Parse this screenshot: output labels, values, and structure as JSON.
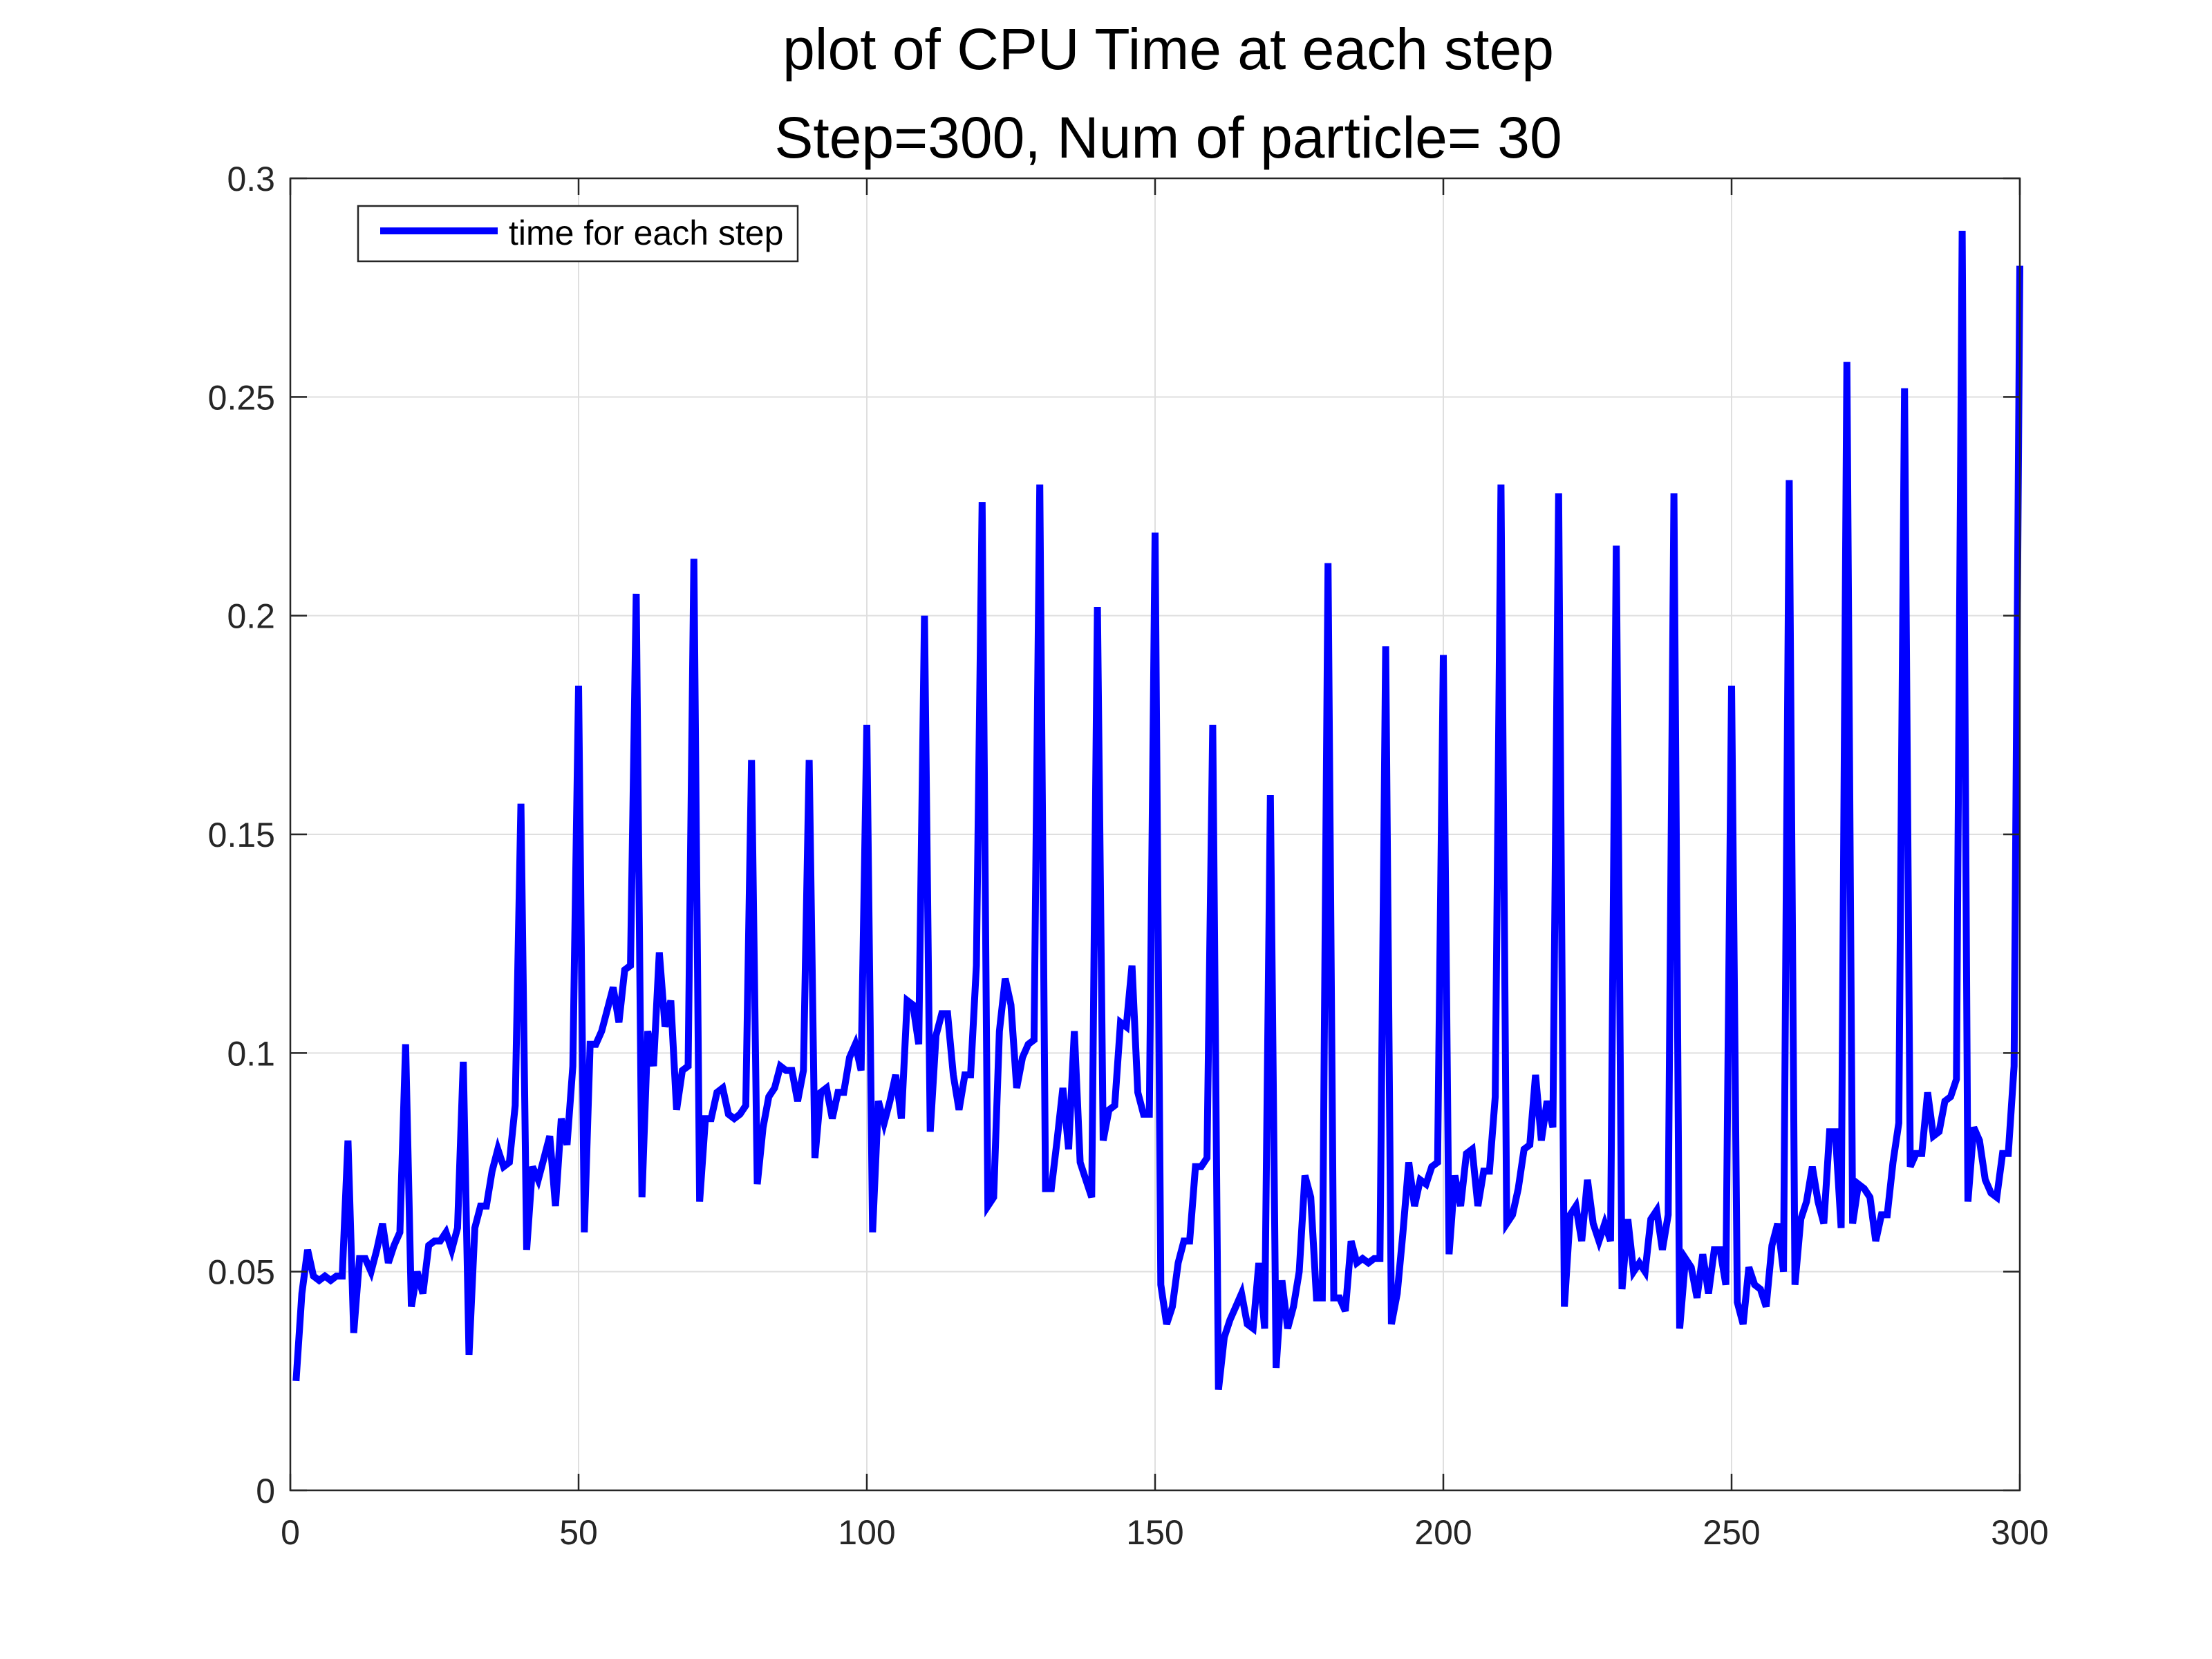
{
  "chart_data": {
    "type": "line",
    "title": "plot of CPU Time at each step",
    "subtitle": "Step=300, Num of particle= 30",
    "xlabel": "",
    "ylabel": "",
    "xlim": [
      0,
      300
    ],
    "ylim": [
      0,
      0.3
    ],
    "xticks": [
      0,
      50,
      100,
      150,
      200,
      250,
      300
    ],
    "xtick_labels": [
      "0",
      "50",
      "100",
      "150",
      "200",
      "250",
      "300"
    ],
    "yticks": [
      0,
      0.05,
      0.1,
      0.15,
      0.2,
      0.25,
      0.3
    ],
    "ytick_labels": [
      "0",
      "0.05",
      "0.1",
      "0.15",
      "0.2",
      "0.25",
      "0.3"
    ],
    "grid": true,
    "legend_position": "top-left",
    "colors": {
      "series": "#0000ff",
      "axis": "#262626",
      "grid": "#dfdfdf"
    },
    "series": [
      {
        "name": "time for each step",
        "color": "#0000ff",
        "x": [
          1,
          2,
          3,
          4,
          5,
          6,
          7,
          8,
          9,
          10,
          11,
          12,
          13,
          14,
          15,
          16,
          17,
          18,
          19,
          20,
          21,
          22,
          23,
          24,
          25,
          26,
          27,
          28,
          29,
          30,
          31,
          32,
          33,
          34,
          35,
          36,
          37,
          38,
          39,
          40,
          41,
          42,
          43,
          44,
          45,
          46,
          47,
          48,
          49,
          50,
          51,
          52,
          53,
          54,
          55,
          56,
          57,
          58,
          59,
          60,
          61,
          62,
          63,
          64,
          65,
          66,
          67,
          68,
          69,
          70,
          71,
          72,
          73,
          74,
          75,
          76,
          77,
          78,
          79,
          80,
          81,
          82,
          83,
          84,
          85,
          86,
          87,
          88,
          89,
          90,
          91,
          92,
          93,
          94,
          95,
          96,
          97,
          98,
          99,
          100,
          101,
          102,
          103,
          104,
          105,
          106,
          107,
          108,
          109,
          110,
          111,
          112,
          113,
          114,
          115,
          116,
          117,
          118,
          119,
          120,
          121,
          122,
          123,
          124,
          125,
          126,
          127,
          128,
          129,
          130,
          131,
          132,
          133,
          134,
          135,
          136,
          137,
          138,
          139,
          140,
          141,
          142,
          143,
          144,
          145,
          146,
          147,
          148,
          149,
          150,
          151,
          152,
          153,
          154,
          155,
          156,
          157,
          158,
          159,
          160,
          161,
          162,
          163,
          164,
          165,
          166,
          167,
          168,
          169,
          170,
          171,
          172,
          173,
          174,
          175,
          176,
          177,
          178,
          179,
          180,
          181,
          182,
          183,
          184,
          185,
          186,
          187,
          188,
          189,
          190,
          191,
          192,
          193,
          194,
          195,
          196,
          197,
          198,
          199,
          200,
          201,
          202,
          203,
          204,
          205,
          206,
          207,
          208,
          209,
          210,
          211,
          212,
          213,
          214,
          215,
          216,
          217,
          218,
          219,
          220,
          221,
          222,
          223,
          224,
          225,
          226,
          227,
          228,
          229,
          230,
          231,
          232,
          233,
          234,
          235,
          236,
          237,
          238,
          239,
          240,
          241,
          242,
          243,
          244,
          245,
          246,
          247,
          248,
          249,
          250,
          251,
          252,
          253,
          254,
          255,
          256,
          257,
          258,
          259,
          260,
          261,
          262,
          263,
          264,
          265,
          266,
          267,
          268,
          269,
          270,
          271,
          272,
          273,
          274,
          275,
          276,
          277,
          278,
          279,
          280,
          281,
          282,
          283,
          284,
          285,
          286,
          287,
          288,
          289,
          290,
          291,
          292,
          293,
          294,
          295,
          296,
          297,
          298,
          299,
          300
        ],
        "values": [
          0.025,
          0.045,
          0.055,
          0.049,
          0.048,
          0.049,
          0.048,
          0.049,
          0.049,
          0.08,
          0.036,
          0.053,
          0.053,
          0.05,
          0.055,
          0.061,
          0.052,
          0.056,
          0.059,
          0.102,
          0.042,
          0.05,
          0.045,
          0.056,
          0.057,
          0.057,
          0.059,
          0.055,
          0.06,
          0.098,
          0.031,
          0.06,
          0.065,
          0.065,
          0.073,
          0.078,
          0.074,
          0.075,
          0.088,
          0.157,
          0.055,
          0.074,
          0.071,
          0.076,
          0.081,
          0.065,
          0.085,
          0.079,
          0.097,
          0.184,
          0.059,
          0.102,
          0.102,
          0.105,
          0.11,
          0.115,
          0.107,
          0.119,
          0.12,
          0.205,
          0.067,
          0.105,
          0.097,
          0.123,
          0.106,
          0.112,
          0.087,
          0.096,
          0.097,
          0.213,
          0.066,
          0.085,
          0.085,
          0.091,
          0.092,
          0.086,
          0.085,
          0.086,
          0.088,
          0.167,
          0.07,
          0.083,
          0.09,
          0.092,
          0.097,
          0.096,
          0.096,
          0.089,
          0.096,
          0.167,
          0.076,
          0.091,
          0.092,
          0.085,
          0.091,
          0.091,
          0.099,
          0.102,
          0.096,
          0.175,
          0.059,
          0.089,
          0.084,
          0.089,
          0.095,
          0.085,
          0.112,
          0.111,
          0.102,
          0.2,
          0.082,
          0.104,
          0.109,
          0.109,
          0.095,
          0.087,
          0.095,
          0.095,
          0.12,
          0.226,
          0.065,
          0.067,
          0.105,
          0.117,
          0.111,
          0.092,
          0.099,
          0.102,
          0.103,
          0.23,
          0.069,
          0.069,
          0.08,
          0.092,
          0.078,
          0.105,
          0.075,
          0.071,
          0.067,
          0.202,
          0.08,
          0.087,
          0.088,
          0.107,
          0.106,
          0.12,
          0.091,
          0.086,
          0.086,
          0.219,
          0.047,
          0.038,
          0.042,
          0.052,
          0.057,
          0.057,
          0.074,
          0.074,
          0.076,
          0.175,
          0.023,
          0.035,
          0.039,
          0.042,
          0.045,
          0.038,
          0.037,
          0.052,
          0.037,
          0.159,
          0.028,
          0.048,
          0.037,
          0.042,
          0.05,
          0.072,
          0.067,
          0.044,
          0.044,
          0.212,
          0.044,
          0.044,
          0.041,
          0.057,
          0.052,
          0.053,
          0.052,
          0.053,
          0.053,
          0.193,
          0.038,
          0.045,
          0.059,
          0.075,
          0.065,
          0.071,
          0.07,
          0.074,
          0.075,
          0.191,
          0.054,
          0.072,
          0.065,
          0.077,
          0.078,
          0.065,
          0.073,
          0.073,
          0.09,
          0.23,
          0.061,
          0.063,
          0.069,
          0.078,
          0.079,
          0.095,
          0.08,
          0.089,
          0.083,
          0.228,
          0.042,
          0.063,
          0.065,
          0.057,
          0.071,
          0.061,
          0.057,
          0.061,
          0.057,
          0.216,
          0.046,
          0.062,
          0.05,
          0.052,
          0.05,
          0.062,
          0.064,
          0.055,
          0.063,
          0.228,
          0.037,
          0.053,
          0.051,
          0.044,
          0.054,
          0.045,
          0.055,
          0.055,
          0.047,
          0.184,
          0.043,
          0.038,
          0.051,
          0.047,
          0.046,
          0.042,
          0.056,
          0.061,
          0.05,
          0.231,
          0.047,
          0.062,
          0.066,
          0.074,
          0.066,
          0.061,
          0.082,
          0.082,
          0.06,
          0.258,
          0.061,
          0.07,
          0.069,
          0.067,
          0.057,
          0.063,
          0.063,
          0.075,
          0.084,
          0.252,
          0.074,
          0.077,
          0.077,
          0.091,
          0.081,
          0.082,
          0.089,
          0.09,
          0.094,
          0.288,
          0.066,
          0.083,
          0.08,
          0.071,
          0.068,
          0.067,
          0.077,
          0.077,
          0.097,
          0.28
        ]
      }
    ]
  }
}
